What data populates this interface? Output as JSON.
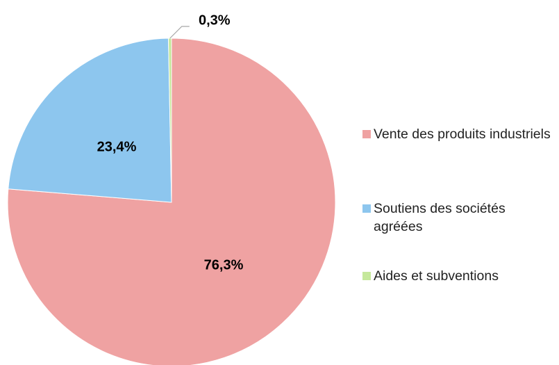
{
  "chart_data": {
    "type": "pie",
    "categories": [
      "Vente des produits industriels",
      "Soutiens des sociétés agréées",
      "Aides et subventions"
    ],
    "values": [
      76.3,
      23.4,
      0.3
    ],
    "value_labels": [
      "76,3%",
      "23,4%",
      "0,3%"
    ],
    "colors": [
      "#EFA2A2",
      "#8DC6EE",
      "#C5E89B"
    ],
    "legend": "right"
  }
}
